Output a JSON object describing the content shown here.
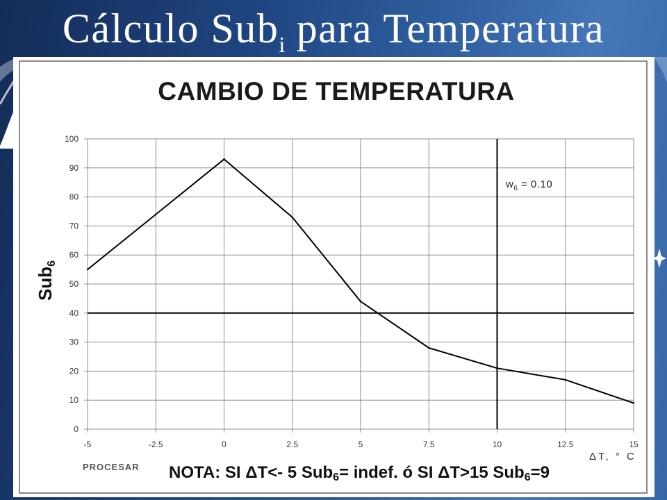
{
  "slide": {
    "title": {
      "main": "Cálculo Sub",
      "subscript": "i",
      "rest": " para Temperatura"
    },
    "colors": {
      "background_stops": [
        "#142c58",
        "#1f4682",
        "#2f5f9f",
        "#4476b8",
        "#3567a8"
      ],
      "title_text": "#ffffff",
      "card": "#ffffff",
      "card_frame": "#8a8a8a"
    }
  },
  "chart_data": {
    "type": "line",
    "title": "CAMBIO DE TEMPERATURA",
    "xlabel": "ΔT, ° C",
    "ylabel": {
      "text": "Sub",
      "subscript": "6"
    },
    "xlim": [
      -5,
      15
    ],
    "ylim": [
      0,
      100
    ],
    "xticks": [
      -5,
      -2.5,
      0,
      2.5,
      5,
      7.5,
      10,
      12.5,
      15
    ],
    "xtick_labels": [
      "-5",
      "-2.5",
      "0",
      "2.5",
      "5",
      "7.5",
      "10",
      "12.5",
      "15"
    ],
    "yticks": [
      0,
      10,
      20,
      30,
      40,
      50,
      60,
      70,
      80,
      90,
      100
    ],
    "ytick_labels": [
      "0",
      "10",
      "20",
      "30",
      "40",
      "50",
      "60",
      "70",
      "80",
      "90",
      "100"
    ],
    "grid": true,
    "x": [
      -5,
      0,
      2.5,
      5,
      7.5,
      10,
      12.5,
      15
    ],
    "series": [
      {
        "values": [
          55,
          93,
          73,
          44,
          28,
          21,
          17,
          9
        ],
        "color": "#000000"
      }
    ],
    "reference_lines": [
      {
        "axis": "y",
        "value": 40
      },
      {
        "axis": "x",
        "value": 10
      }
    ],
    "annotation": {
      "text": "w",
      "subscript": "6",
      "rest": " = 0.10",
      "placement": "top-right"
    },
    "colors": {
      "grid": "#8c8c8c",
      "reference": "#000000",
      "tick_text": "#333333",
      "title": "#1a1a1a"
    }
  },
  "footer": {
    "button_label": "PROCESAR",
    "note": [
      "NOTA: SI ΔT<- 5 Sub",
      "6",
      "= indef. ó SI ΔT>15 Sub",
      "6",
      "=9"
    ]
  }
}
